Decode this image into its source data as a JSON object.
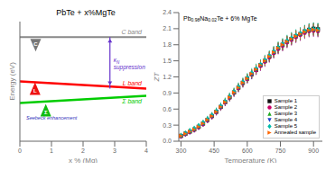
{
  "chart_data": [
    {
      "type": "line",
      "title": "PbTe + x%MgTe",
      "x_label": "x % (Mg)",
      "y_label": "Energy (eV)",
      "x": [
        0,
        4
      ],
      "xlim": [
        0,
        4
      ],
      "ylim": [
        0,
        1.0
      ],
      "xticks": [
        0,
        1,
        2,
        3,
        4
      ],
      "tick_labels": "x",
      "series": [
        {
          "name": "C band",
          "color": "#888888",
          "values": [
            0.87,
            0.87
          ]
        },
        {
          "name": "L band",
          "color": "#ff0000",
          "values": [
            0.5,
            0.44
          ]
        },
        {
          "name": "Σ band",
          "color": "#00cc00",
          "values": [
            0.32,
            0.38
          ]
        }
      ],
      "annotations": [
        {
          "text": "C",
          "color": "#777777"
        },
        {
          "text": "L",
          "color": "#ee1111"
        },
        {
          "text": "Σ",
          "color": "#11bb11"
        },
        {
          "text": "κN suppression",
          "color": "#6633cc"
        },
        {
          "text": "Seebeck enhancement",
          "color": "#3333bb"
        }
      ]
    },
    {
      "type": "scatter",
      "title": "Pb0.98Na0.02Te + 6% MgTe",
      "x_label": "Temperature (K)",
      "y_label": "ZT",
      "xlim": [
        290,
        940
      ],
      "ylim": [
        0,
        2.4
      ],
      "xticks": [
        300,
        450,
        600,
        750,
        900
      ],
      "yticks": [
        {
          "value": 0,
          "label": "0.0"
        },
        0.3,
        0.6,
        0.9,
        1.2,
        1.5,
        1.8,
        2.1,
        2.4
      ],
      "legend": "lower right",
      "x": [
        300,
        320,
        340,
        360,
        380,
        400,
        420,
        440,
        460,
        480,
        500,
        520,
        540,
        560,
        580,
        600,
        620,
        640,
        660,
        680,
        700,
        720,
        740,
        760,
        780,
        800,
        820,
        840,
        860,
        880,
        900,
        920
      ],
      "series": [
        {
          "name": "Sample 1",
          "color": "#111111",
          "marker": "square",
          "values": [
            0.1,
            0.14,
            0.18,
            0.22,
            0.27,
            0.33,
            0.4,
            0.47,
            0.55,
            0.64,
            0.73,
            0.82,
            0.91,
            1.0,
            1.09,
            1.17,
            1.25,
            1.33,
            1.42,
            1.5,
            1.58,
            1.66,
            1.74,
            1.8,
            1.86,
            1.91,
            1.96,
            2.0,
            2.05,
            2.08,
            2.1,
            2.09
          ],
          "errors": [
            0.0435,
            0.0449,
            0.0463,
            0.0477,
            0.04945,
            0.05155,
            0.054,
            0.05645,
            0.05925,
            0.0624,
            0.06555,
            0.0687,
            0.07185,
            0.075,
            0.07815,
            0.08095,
            0.08375,
            0.08655,
            0.0897,
            0.0925,
            0.0953,
            0.0981,
            0.1009,
            0.103,
            0.1051,
            0.10685,
            0.1086,
            0.11,
            0.11175,
            0.1128,
            0.1135,
            0.11315
          ]
        },
        {
          "name": "Sample 2",
          "color": "#cc0066",
          "marker": "circle",
          "values": [
            0.09,
            0.13,
            0.17,
            0.21,
            0.26,
            0.32,
            0.39,
            0.46,
            0.54,
            0.63,
            0.72,
            0.81,
            0.9,
            0.99,
            1.08,
            1.16,
            1.24,
            1.32,
            1.4,
            1.48,
            1.56,
            1.64,
            1.72,
            1.78,
            1.84,
            1.89,
            1.94,
            1.98,
            2.02,
            2.05,
            2.06,
            2.05
          ],
          "errors": [
            0.04315,
            0.04455,
            0.04595,
            0.04735,
            0.0491,
            0.0512,
            0.05365,
            0.0561,
            0.0589,
            0.06205,
            0.0652,
            0.06835,
            0.0715,
            0.07465,
            0.0778,
            0.0806,
            0.0834,
            0.0862,
            0.089,
            0.0918,
            0.0946,
            0.0974,
            0.1002,
            0.1023,
            0.1044,
            0.10615,
            0.1079,
            0.1093,
            0.1107,
            0.11175,
            0.1121,
            0.11175
          ]
        },
        {
          "name": "Sample 3",
          "color": "#22aa22",
          "marker": "triangle-up",
          "values": [
            0.11,
            0.15,
            0.19,
            0.23,
            0.28,
            0.34,
            0.41,
            0.48,
            0.56,
            0.65,
            0.74,
            0.83,
            0.92,
            1.01,
            1.1,
            1.18,
            1.26,
            1.35,
            1.43,
            1.51,
            1.59,
            1.67,
            1.75,
            1.81,
            1.87,
            1.92,
            1.97,
            2.01,
            2.05,
            2.08,
            2.09,
            2.08
          ],
          "errors": [
            0.04385,
            0.04525,
            0.04665,
            0.04805,
            0.0498,
            0.0519,
            0.05435,
            0.0568,
            0.0596,
            0.06275,
            0.0659,
            0.06905,
            0.0722,
            0.07535,
            0.0785,
            0.0813,
            0.0841,
            0.08725,
            0.09005,
            0.09285,
            0.09565,
            0.09845,
            0.10125,
            0.10335,
            0.10545,
            0.1072,
            0.10895,
            0.11035,
            0.11175,
            0.1128,
            0.11315,
            0.1128
          ]
        },
        {
          "name": "Sample 4",
          "color": "#2244cc",
          "marker": "triangle-down",
          "values": [
            0.09,
            0.13,
            0.17,
            0.21,
            0.26,
            0.32,
            0.39,
            0.46,
            0.54,
            0.63,
            0.72,
            0.81,
            0.9,
            0.99,
            1.08,
            1.16,
            1.24,
            1.33,
            1.41,
            1.49,
            1.57,
            1.65,
            1.73,
            1.79,
            1.85,
            1.9,
            1.95,
            1.99,
            2.03,
            2.06,
            2.07,
            2.06
          ],
          "errors": [
            0.04315,
            0.04455,
            0.04595,
            0.04735,
            0.0491,
            0.0512,
            0.05365,
            0.0561,
            0.0589,
            0.06205,
            0.0652,
            0.06835,
            0.0715,
            0.07465,
            0.0778,
            0.0806,
            0.0834,
            0.08655,
            0.08935,
            0.09215,
            0.09495,
            0.09775,
            0.10055,
            0.10265,
            0.10475,
            0.1065,
            0.10825,
            0.10965,
            0.11105,
            0.1121,
            0.11245,
            0.1121
          ]
        },
        {
          "name": "Sample 5",
          "color": "#00bbaa",
          "marker": "diamond",
          "values": [
            0.11,
            0.15,
            0.2,
            0.24,
            0.29,
            0.35,
            0.42,
            0.49,
            0.57,
            0.66,
            0.75,
            0.84,
            0.93,
            1.02,
            1.11,
            1.19,
            1.28,
            1.36,
            1.44,
            1.52,
            1.6,
            1.68,
            1.76,
            1.82,
            1.88,
            1.93,
            1.98,
            2.02,
            2.06,
            2.09,
            2.1,
            2.09
          ],
          "errors": [
            0.04385,
            0.04525,
            0.047,
            0.0484,
            0.05015,
            0.05225,
            0.0547,
            0.05715,
            0.05995,
            0.0631,
            0.06625,
            0.0694,
            0.07255,
            0.0757,
            0.07885,
            0.08165,
            0.0848,
            0.0876,
            0.0904,
            0.0932,
            0.096,
            0.0988,
            0.1016,
            0.1037,
            0.1058,
            0.10755,
            0.1093,
            0.1107,
            0.1121,
            0.11315,
            0.1135,
            0.11315
          ]
        },
        {
          "name": "Annealed sample",
          "color": "#ff6600",
          "marker": "triangle-right",
          "values": [
            0.1,
            0.14,
            0.18,
            0.22,
            0.27,
            0.33,
            0.4,
            0.47,
            0.55,
            0.64,
            0.73,
            0.82,
            0.91,
            1.0,
            1.09,
            1.17,
            1.26,
            1.34,
            1.42,
            1.5,
            1.58,
            1.66,
            1.74,
            1.8,
            1.86,
            1.91,
            1.96,
            2.0,
            2.04,
            2.07,
            2.08,
            2.07
          ],
          "errors": [
            0.0435,
            0.0449,
            0.0463,
            0.0477,
            0.04945,
            0.05155,
            0.054,
            0.05645,
            0.05925,
            0.0624,
            0.06555,
            0.0687,
            0.07185,
            0.075,
            0.07815,
            0.08095,
            0.0841,
            0.0869,
            0.0897,
            0.0925,
            0.0953,
            0.0981,
            0.1009,
            0.103,
            0.1051,
            0.10685,
            0.1086,
            0.11,
            0.1114,
            0.11245,
            0.1128,
            0.11245
          ]
        }
      ]
    }
  ]
}
